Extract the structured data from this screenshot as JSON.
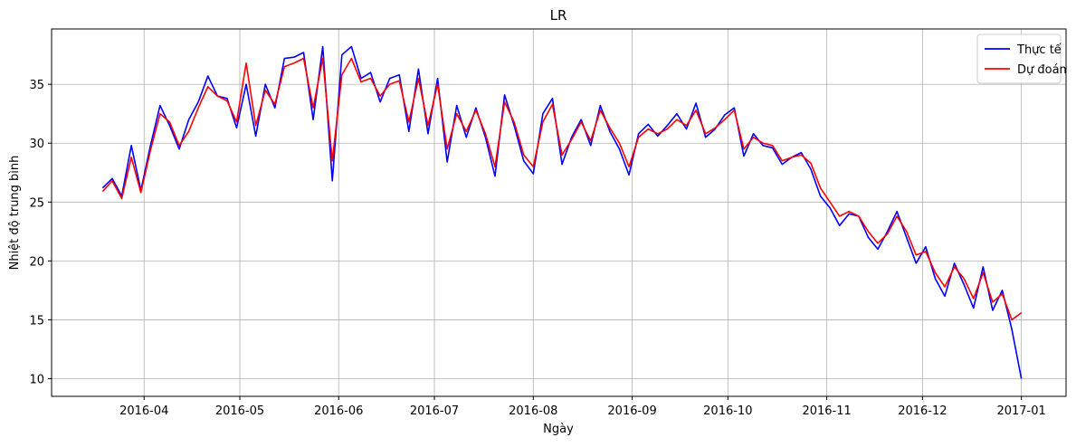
{
  "chart_data": {
    "type": "line",
    "title": "LR",
    "x_label": "Ngày",
    "y_label": "Nhiệt độ trung bình",
    "x": [
      "2016-03-19",
      "2016-03-22",
      "2016-03-25",
      "2016-03-28",
      "2016-03-31",
      "2016-04-03",
      "2016-04-06",
      "2016-04-09",
      "2016-04-12",
      "2016-04-15",
      "2016-04-18",
      "2016-04-21",
      "2016-04-24",
      "2016-04-27",
      "2016-04-30",
      "2016-05-03",
      "2016-05-06",
      "2016-05-09",
      "2016-05-12",
      "2016-05-15",
      "2016-05-18",
      "2016-05-21",
      "2016-05-24",
      "2016-05-27",
      "2016-05-30",
      "2016-06-02",
      "2016-06-05",
      "2016-06-08",
      "2016-06-11",
      "2016-06-14",
      "2016-06-17",
      "2016-06-20",
      "2016-06-23",
      "2016-06-26",
      "2016-06-29",
      "2016-07-02",
      "2016-07-05",
      "2016-07-08",
      "2016-07-11",
      "2016-07-14",
      "2016-07-17",
      "2016-07-20",
      "2016-07-23",
      "2016-07-26",
      "2016-07-29",
      "2016-08-01",
      "2016-08-04",
      "2016-08-07",
      "2016-08-10",
      "2016-08-13",
      "2016-08-16",
      "2016-08-19",
      "2016-08-22",
      "2016-08-25",
      "2016-08-28",
      "2016-08-31",
      "2016-09-03",
      "2016-09-06",
      "2016-09-09",
      "2016-09-12",
      "2016-09-15",
      "2016-09-18",
      "2016-09-21",
      "2016-09-24",
      "2016-09-27",
      "2016-09-30",
      "2016-10-03",
      "2016-10-06",
      "2016-10-09",
      "2016-10-12",
      "2016-10-15",
      "2016-10-18",
      "2016-10-21",
      "2016-10-24",
      "2016-10-27",
      "2016-10-30",
      "2016-11-02",
      "2016-11-05",
      "2016-11-08",
      "2016-11-11",
      "2016-11-14",
      "2016-11-17",
      "2016-11-20",
      "2016-11-23",
      "2016-11-26",
      "2016-11-29",
      "2016-12-02",
      "2016-12-05",
      "2016-12-08",
      "2016-12-11",
      "2016-12-14",
      "2016-12-17",
      "2016-12-20",
      "2016-12-23",
      "2016-12-26",
      "2016-12-29",
      "2017-01-01"
    ],
    "series": [
      {
        "name": "Thực tế",
        "color": "#0000ff",
        "values": [
          26.2,
          27.0,
          25.5,
          29.8,
          26.0,
          29.8,
          33.2,
          31.5,
          29.5,
          32.0,
          33.5,
          35.7,
          34.0,
          33.8,
          31.3,
          35.0,
          30.6,
          35.0,
          33.0,
          37.2,
          37.3,
          37.7,
          32.0,
          38.2,
          26.8,
          37.5,
          38.2,
          35.5,
          36.0,
          33.5,
          35.5,
          35.8,
          31.0,
          36.3,
          30.8,
          35.5,
          28.4,
          33.2,
          30.5,
          33.0,
          30.5,
          27.2,
          34.1,
          31.5,
          28.5,
          27.4,
          32.5,
          33.8,
          28.2,
          30.5,
          32.0,
          29.8,
          33.2,
          31.0,
          29.5,
          27.3,
          30.8,
          31.6,
          30.6,
          31.5,
          32.5,
          31.2,
          33.4,
          30.5,
          31.2,
          32.4,
          33.0,
          28.9,
          30.8,
          29.8,
          29.6,
          28.2,
          28.8,
          29.2,
          27.8,
          25.5,
          24.5,
          23.0,
          24.0,
          23.8,
          22.0,
          21.0,
          22.5,
          24.2,
          22.0,
          19.8,
          21.2,
          18.5,
          17.0,
          19.8,
          18.0,
          16.0,
          19.5,
          15.8,
          17.5,
          14.2,
          10.0
        ]
      },
      {
        "name": "Dự đoán",
        "color": "#ff0000",
        "values": [
          25.9,
          26.8,
          25.3,
          28.8,
          25.8,
          29.4,
          32.5,
          31.8,
          29.8,
          31.0,
          33.0,
          34.8,
          34.0,
          33.6,
          31.8,
          36.8,
          31.5,
          34.5,
          33.3,
          36.5,
          36.8,
          37.2,
          33.0,
          37.2,
          28.5,
          35.8,
          37.2,
          35.2,
          35.5,
          34.0,
          35.0,
          35.3,
          31.8,
          35.5,
          31.5,
          35.0,
          29.5,
          32.5,
          31.0,
          32.8,
          30.8,
          28.0,
          33.5,
          31.8,
          29.0,
          28.0,
          31.8,
          33.3,
          29.0,
          30.3,
          31.8,
          30.2,
          32.8,
          31.3,
          30.0,
          28.0,
          30.5,
          31.2,
          30.8,
          31.2,
          32.0,
          31.5,
          32.8,
          30.8,
          31.3,
          32.0,
          32.8,
          29.5,
          30.5,
          30.0,
          29.8,
          28.5,
          28.8,
          29.0,
          28.3,
          26.2,
          25.0,
          23.8,
          24.2,
          23.8,
          22.5,
          21.5,
          22.3,
          23.8,
          22.5,
          20.5,
          20.8,
          19.0,
          17.8,
          19.5,
          18.5,
          16.8,
          19.0,
          16.5,
          17.2,
          15.0,
          15.6
        ]
      }
    ],
    "xlim": [
      "2016-03-03",
      "2017-01-15"
    ],
    "xticks": [
      {
        "value": "2016-04-01",
        "label": "2016-04"
      },
      {
        "value": "2016-05-01",
        "label": "2016-05"
      },
      {
        "value": "2016-06-01",
        "label": "2016-06"
      },
      {
        "value": "2016-07-01",
        "label": "2016-07"
      },
      {
        "value": "2016-08-01",
        "label": "2016-08"
      },
      {
        "value": "2016-09-01",
        "label": "2016-09"
      },
      {
        "value": "2016-10-01",
        "label": "2016-10"
      },
      {
        "value": "2016-11-01",
        "label": "2016-11"
      },
      {
        "value": "2016-12-01",
        "label": "2016-12"
      },
      {
        "value": "2017-01-01",
        "label": "2017-01"
      }
    ],
    "ylim": [
      8.5,
      39.7
    ],
    "yticks": [
      10,
      15,
      20,
      25,
      30,
      35
    ],
    "grid": true,
    "legend": "upper right"
  }
}
